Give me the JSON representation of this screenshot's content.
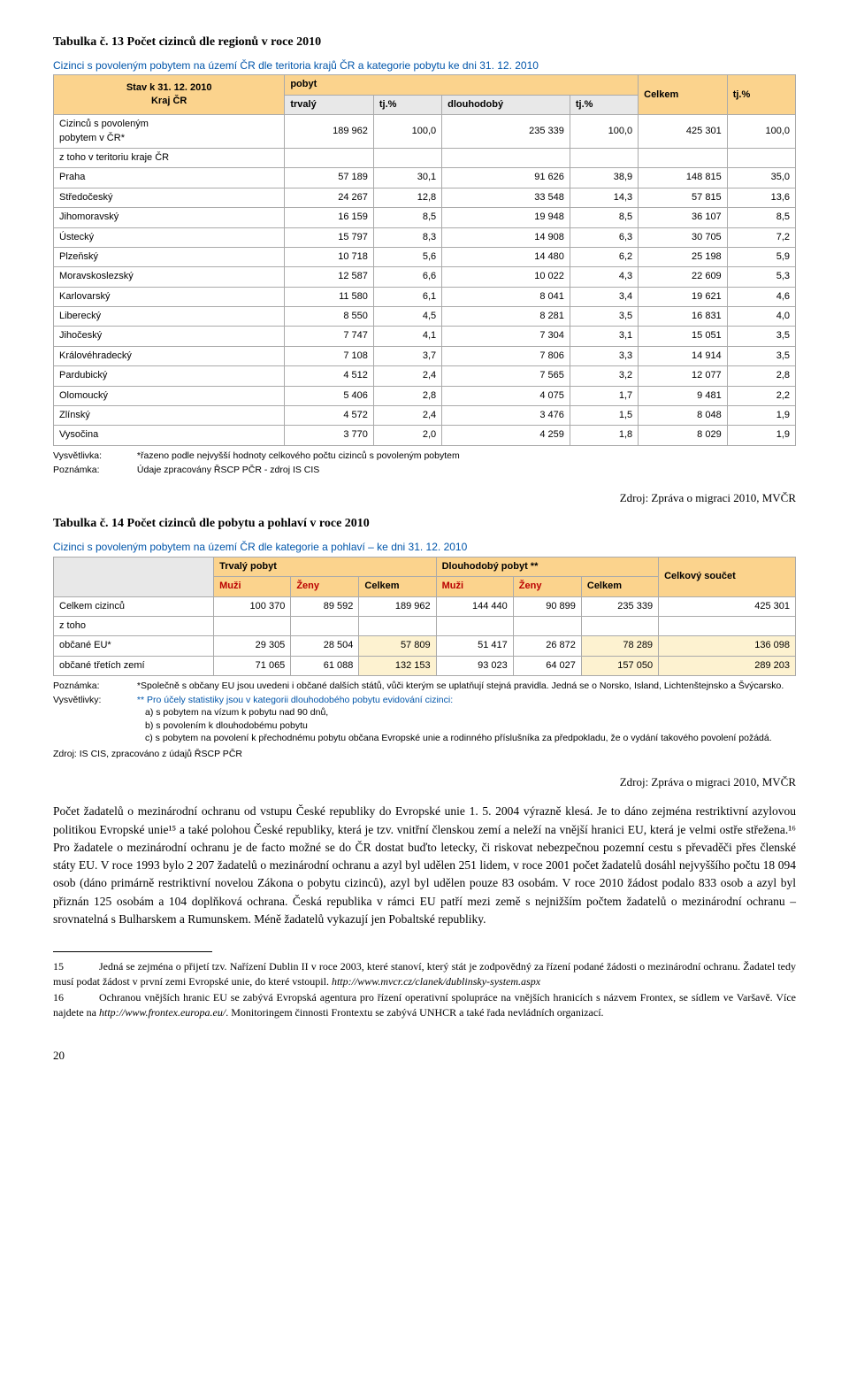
{
  "caption1": "Tabulka č. 13 Počet cizinců dle regionů v roce 2010",
  "tableTitle1": "Cizinci s povoleným pobytem na území ČR dle teritoria krajů ČR a kategorie pobytu ke dni 31. 12. 2010",
  "t1": {
    "h_stav": "Stav k 31. 12. 2010",
    "h_kraj": "Kraj ČR",
    "h_pobyt": "pobyt",
    "h_trvaly": "trvalý",
    "h_tj1": "tj.%",
    "h_dlouh": "dlouhodobý",
    "h_tj2": "tj.%",
    "h_celkem": "Celkem",
    "h_tj3": "tj.%",
    "rows": [
      {
        "label": "Cizinců s povoleným",
        "sub": "pobytem v ČR*",
        "a": "189 962",
        "b": "100,0",
        "c": "235 339",
        "d": "100,0",
        "e": "425 301",
        "f": "100,0"
      },
      {
        "label": "z toho v teritoriu kraje ČR",
        "sub": "",
        "a": "",
        "b": "",
        "c": "",
        "d": "",
        "e": "",
        "f": ""
      },
      {
        "label": "Praha",
        "a": "57 189",
        "b": "30,1",
        "c": "91 626",
        "d": "38,9",
        "e": "148 815",
        "f": "35,0"
      },
      {
        "label": "Středočeský",
        "a": "24 267",
        "b": "12,8",
        "c": "33 548",
        "d": "14,3",
        "e": "57 815",
        "f": "13,6"
      },
      {
        "label": "Jihomoravský",
        "a": "16 159",
        "b": "8,5",
        "c": "19 948",
        "d": "8,5",
        "e": "36 107",
        "f": "8,5"
      },
      {
        "label": "Ústecký",
        "a": "15 797",
        "b": "8,3",
        "c": "14 908",
        "d": "6,3",
        "e": "30 705",
        "f": "7,2"
      },
      {
        "label": "Plzeňský",
        "a": "10 718",
        "b": "5,6",
        "c": "14 480",
        "d": "6,2",
        "e": "25 198",
        "f": "5,9"
      },
      {
        "label": "Moravskoslezský",
        "a": "12 587",
        "b": "6,6",
        "c": "10 022",
        "d": "4,3",
        "e": "22 609",
        "f": "5,3"
      },
      {
        "label": "Karlovarský",
        "a": "11 580",
        "b": "6,1",
        "c": "8 041",
        "d": "3,4",
        "e": "19 621",
        "f": "4,6"
      },
      {
        "label": "Liberecký",
        "a": "8 550",
        "b": "4,5",
        "c": "8 281",
        "d": "3,5",
        "e": "16 831",
        "f": "4,0"
      },
      {
        "label": "Jihočeský",
        "a": "7 747",
        "b": "4,1",
        "c": "7 304",
        "d": "3,1",
        "e": "15 051",
        "f": "3,5"
      },
      {
        "label": "Královéhradecký",
        "a": "7 108",
        "b": "3,7",
        "c": "7 806",
        "d": "3,3",
        "e": "14 914",
        "f": "3,5"
      },
      {
        "label": "Pardubický",
        "a": "4 512",
        "b": "2,4",
        "c": "7 565",
        "d": "3,2",
        "e": "12 077",
        "f": "2,8"
      },
      {
        "label": "Olomoucký",
        "a": "5 406",
        "b": "2,8",
        "c": "4 075",
        "d": "1,7",
        "e": "9 481",
        "f": "2,2"
      },
      {
        "label": "Zlínský",
        "a": "4 572",
        "b": "2,4",
        "c": "3 476",
        "d": "1,5",
        "e": "8 048",
        "f": "1,9"
      },
      {
        "label": "Vysočina",
        "a": "3 770",
        "b": "2,0",
        "c": "4 259",
        "d": "1,8",
        "e": "8 029",
        "f": "1,9"
      }
    ]
  },
  "t1_note1_label": "Vysvětlivka:",
  "t1_note1_text": "*řazeno podle nejvyšší hodnoty celkového počtu cizinců s povoleným pobytem",
  "t1_note2_label": "Poznámka:",
  "t1_note2_text": "Údaje zpracovány ŘSCP PČR - zdroj IS CIS",
  "source1": "Zdroj: Zpráva o migraci 2010, MVČR",
  "caption2": "Tabulka č. 14 Počet cizinců dle pobytu a pohlaví v roce 2010",
  "tableTitle2": "Cizinci s povoleným pobytem na území ČR dle kategorie a pohlaví – ke dni 31. 12. 2010",
  "t2": {
    "h_trvaly": "Trvalý pobyt",
    "h_dlouh": "Dlouhodobý pobyt **",
    "h_celk": "Celkový součet",
    "h_muzi": "Muži",
    "h_zeny": "Ženy",
    "h_celkem": "Celkem",
    "rows": [
      {
        "label": "Celkem cizinců",
        "m1": "100 370",
        "z1": "89 592",
        "c1": "189 962",
        "m2": "144 440",
        "z2": "90 899",
        "c2": "235 339",
        "tot": "425 301"
      },
      {
        "label": "z toho",
        "m1": "",
        "z1": "",
        "c1": "",
        "m2": "",
        "z2": "",
        "c2": "",
        "tot": ""
      },
      {
        "label": "občané EU*",
        "m1": "29 305",
        "z1": "28 504",
        "c1": "57 809",
        "m2": "51 417",
        "z2": "26 872",
        "c2": "78 289",
        "tot": "136 098"
      },
      {
        "label": "občané třetích zemí",
        "m1": "71 065",
        "z1": "61 088",
        "c1": "132 153",
        "m2": "93 023",
        "z2": "64 027",
        "c2": "157 050",
        "tot": "289 203"
      }
    ]
  },
  "t2_note1_label": "Poznámka:",
  "t2_note1_text": "*Společně s občany EU jsou uvedeni i občané dalších států, vůči kterým se uplatňují stejná pravidla. Jedná se o Norsko, Island, Lichtenštejnsko a Švýcarsko.",
  "t2_note2_label": "Vysvětlivky:",
  "t2_note2_text": "** Pro účely statistiky jsou v kategorii dlouhodobého pobytu evidování cizinci:",
  "t2_list_a": "a) s pobytem na vízum k pobytu nad 90 dnů,",
  "t2_list_b": "b) s povolením k dlouhodobému pobytu",
  "t2_list_c": "c) s pobytem na povolení k přechodnému pobytu občana Evropské unie a rodinného příslušníka za předpokladu, že o vydání takového povolení požádá.",
  "t2_src": "Zdroj: IS CIS, zpracováno z údajů ŘSCP PČR",
  "source2": "Zdroj: Zpráva o migraci 2010, MVČR",
  "body": "Počet žadatelů o mezinárodní ochranu od vstupu České republiky do Evropské unie 1. 5. 2004 výrazně klesá. Je to dáno zejména restriktivní azylovou politikou Evropské unie¹⁵ a také polohou České republiky, která je tzv. vnitřní členskou zemí a neleží na vnější hranici EU, která je velmi ostře střežena.¹⁶ Pro žadatele o mezinárodní ochranu je de facto možné se do ČR dostat buďto letecky, či riskovat nebezpečnou pozemní cestu s převaděči přes členské státy EU. V roce 1993 bylo 2 207 žadatelů o mezinárodní ochranu a azyl byl udělen 251 lidem, v roce 2001 počet žadatelů dosáhl nejvyššího počtu 18 094 osob (dáno primárně restriktivní novelou Zákona o pobytu cizinců), azyl byl udělen pouze 83 osobám. V roce 2010 žádost podalo 833 osob a azyl byl přiznán 125 osobám a 104 doplňková ochrana. Česká republika v rámci EU patří mezi země s nejnižším počtem žadatelů o mezinárodní ochranu – srovnatelná s Bulharskem a Rumunskem. Méně žadatelů vykazují jen Pobaltské republiky.",
  "fn15_num": "15",
  "fn15": "Jedná se zejména o přijetí tzv. Nařízení Dublin II v roce 2003, které stanoví, který stát je zodpovědný za řízení podané žádosti o mezinárodní ochranu. Žadatel tedy musí podat žádost v první zemi Evropské unie, do které vstoupil. ",
  "fn15_url": "http://www.mvcr.cz/clanek/dublinsky-system.aspx",
  "fn16_num": "16",
  "fn16": "Ochranou vnějších hranic EU se zabývá Evropská agentura pro řízení operativní spolupráce na vnějších hranicích s názvem Frontex, se sídlem ve Varšavě. Více najdete na ",
  "fn16_url": "http://www.frontex.europa.eu/",
  "fn16_tail": ". Monitoringem činnosti Frontextu se zabývá UNHCR a také řada nevládních organizací.",
  "pageNum": "20"
}
